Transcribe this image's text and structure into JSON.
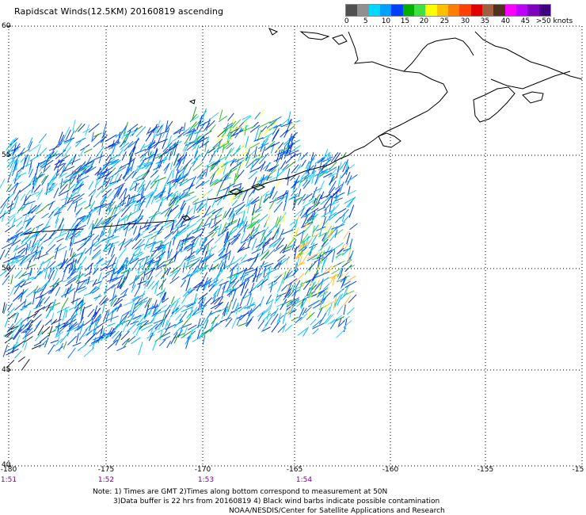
{
  "title": "Rapidscat Winds(12.5KM) 20160819 ascending",
  "legend": {
    "colors": [
      "#505050",
      "#909090",
      "#00d8ff",
      "#00a0ff",
      "#0040ff",
      "#00b000",
      "#40e040",
      "#ffff00",
      "#ffc000",
      "#ff8000",
      "#ff4000",
      "#e00000",
      "#a06040",
      "#503020",
      "#ff00ff",
      "#c000ff",
      "#8000c0",
      "#400080"
    ],
    "labels": [
      "0",
      "5",
      "10",
      "15",
      "20",
      "25",
      "30",
      "35",
      "40",
      "45",
      ">50 knots"
    ]
  },
  "map": {
    "lat_labels": [
      "60",
      "55",
      "50",
      "45",
      "40"
    ],
    "lon_labels": [
      "-180",
      "-175",
      "-170",
      "-165",
      "-160",
      "-155",
      "-15"
    ],
    "time_labels": [
      "1:51",
      "1:52",
      "1:53",
      "1:54"
    ]
  },
  "chart_data": {
    "type": "map",
    "x": [
      -180,
      -150
    ],
    "y": [
      40,
      60
    ],
    "grid": true,
    "swath_extent": {
      "lon": [
        -180,
        -162
      ],
      "lat": [
        46.5,
        57
      ]
    }
  },
  "notes": {
    "line1": "Note: 1) Times are GMT 2)Times along bottom correspond to measurement at 50N",
    "line2": "3)Data buffer is 22 hrs from 20160819 4) Black wind barbs indicate possible contamination",
    "line3": "NOAA/NESDIS/Center for Satellite Applications and Research"
  }
}
